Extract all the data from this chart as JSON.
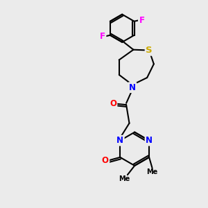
{
  "background_color": "#ebebeb",
  "atom_colors": {
    "N": "#0000ff",
    "O": "#ff0000",
    "S": "#ccaa00",
    "F": "#ff00ff",
    "C": "#000000"
  },
  "bond_color": "#000000",
  "bond_width": 1.5,
  "font_size_atom": 8.5
}
